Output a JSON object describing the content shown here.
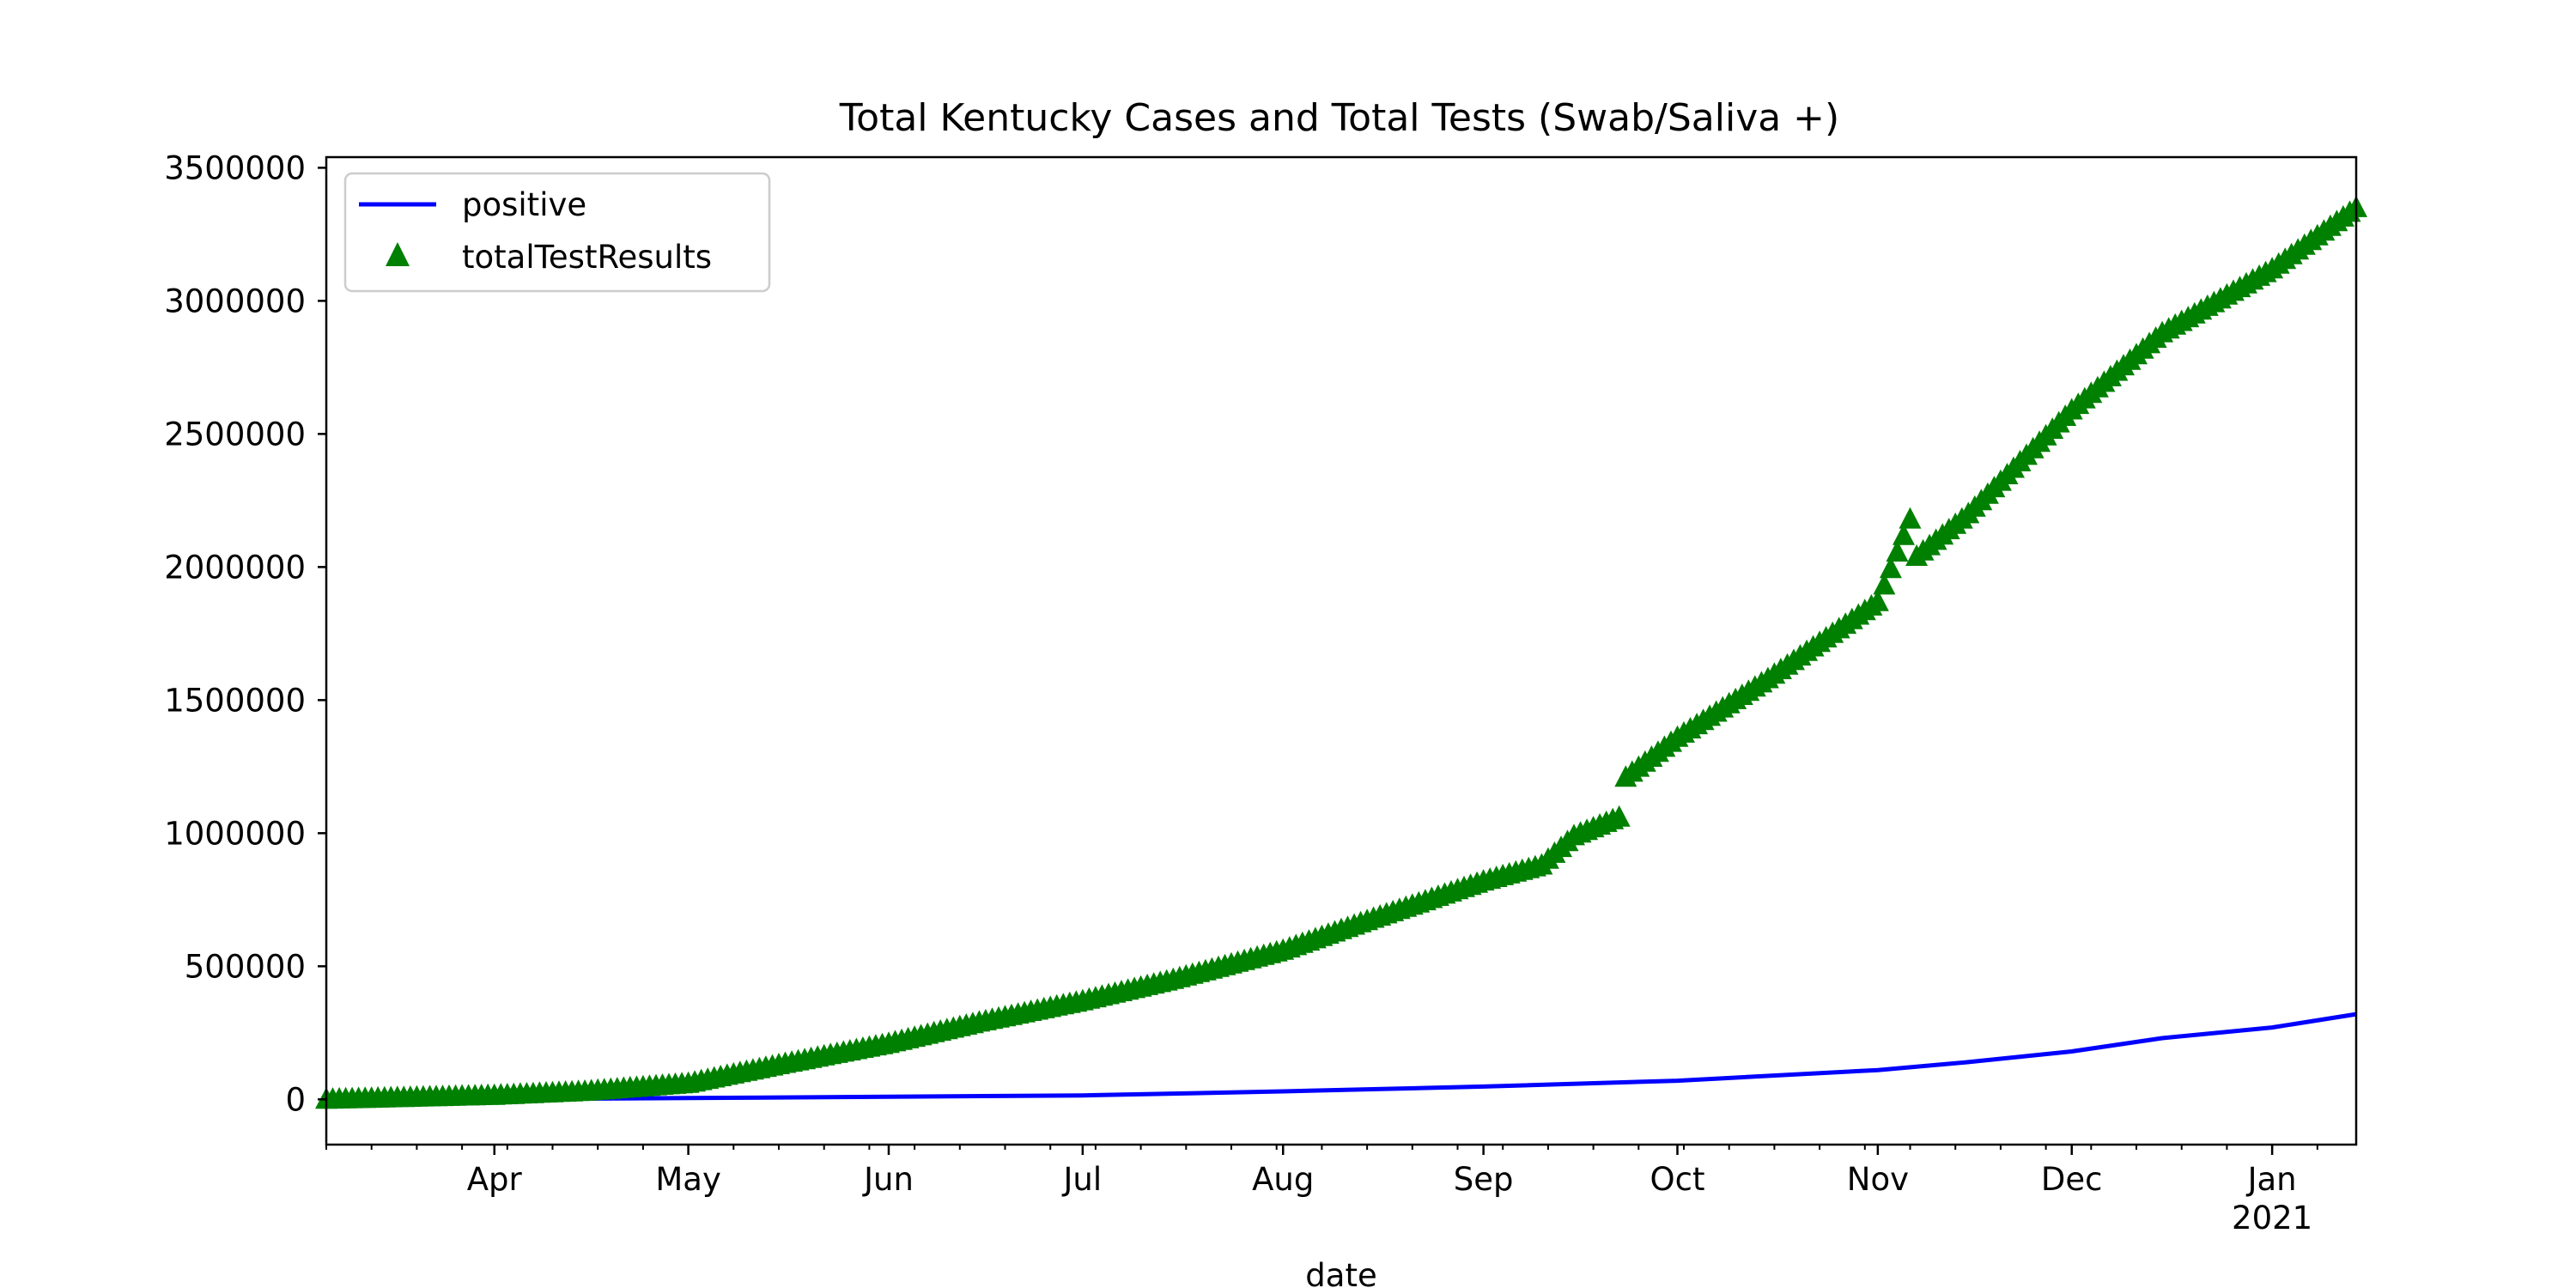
{
  "chart_data": {
    "type": "line",
    "title": "Total Kentucky Cases and Total Tests (Swab/Saliva +)",
    "xlabel": "date",
    "ylabel": "",
    "x_range": [
      "2020-03-06",
      "2021-01-14"
    ],
    "ylim": [
      -170000,
      3540000
    ],
    "grid": false,
    "legend": "top-left",
    "x_ticks": [
      {
        "date": "2020-04-01",
        "label": "Apr"
      },
      {
        "date": "2020-05-01",
        "label": "May"
      },
      {
        "date": "2020-06-01",
        "label": "Jun"
      },
      {
        "date": "2020-07-01",
        "label": "Jul"
      },
      {
        "date": "2020-08-01",
        "label": "Aug"
      },
      {
        "date": "2020-09-01",
        "label": "Sep"
      },
      {
        "date": "2020-10-01",
        "label": "Oct"
      },
      {
        "date": "2020-11-01",
        "label": "Nov"
      },
      {
        "date": "2020-12-01",
        "label": "Dec"
      },
      {
        "date": "2021-01-01",
        "label": "Jan",
        "sublabel": "2021"
      }
    ],
    "y_ticks": [
      0,
      500000,
      1000000,
      1500000,
      2000000,
      2500000,
      3000000,
      3500000
    ],
    "series": [
      {
        "name": "positive",
        "style": "line",
        "color": "#0000ff",
        "points": [
          [
            "2020-03-06",
            0
          ],
          [
            "2020-04-01",
            600
          ],
          [
            "2020-05-01",
            5000
          ],
          [
            "2020-06-01",
            10000
          ],
          [
            "2020-07-01",
            15000
          ],
          [
            "2020-08-01",
            30000
          ],
          [
            "2020-09-01",
            48000
          ],
          [
            "2020-10-01",
            70000
          ],
          [
            "2020-11-01",
            110000
          ],
          [
            "2020-11-15",
            140000
          ],
          [
            "2020-12-01",
            180000
          ],
          [
            "2020-12-15",
            230000
          ],
          [
            "2021-01-01",
            270000
          ],
          [
            "2021-01-14",
            320000
          ]
        ]
      },
      {
        "name": "totalTestResults",
        "style": "marker",
        "marker": "triangle",
        "color": "#008000",
        "points": [
          [
            "2020-03-06",
            0
          ],
          [
            "2020-04-01",
            15000
          ],
          [
            "2020-04-15",
            30000
          ],
          [
            "2020-05-01",
            60000
          ],
          [
            "2020-05-15",
            130000
          ],
          [
            "2020-06-01",
            210000
          ],
          [
            "2020-06-15",
            290000
          ],
          [
            "2020-07-01",
            370000
          ],
          [
            "2020-07-15",
            450000
          ],
          [
            "2020-08-01",
            560000
          ],
          [
            "2020-08-15",
            680000
          ],
          [
            "2020-09-01",
            820000
          ],
          [
            "2020-09-10",
            880000
          ],
          [
            "2020-09-15",
            990000
          ],
          [
            "2020-09-22",
            1060000
          ],
          [
            "2020-09-23",
            1210000
          ],
          [
            "2020-10-01",
            1360000
          ],
          [
            "2020-10-15",
            1580000
          ],
          [
            "2020-11-01",
            1870000
          ],
          [
            "2020-11-06",
            2180000
          ],
          [
            "2020-11-07",
            2040000
          ],
          [
            "2020-11-15",
            2200000
          ],
          [
            "2020-12-01",
            2590000
          ],
          [
            "2020-12-15",
            2880000
          ],
          [
            "2021-01-01",
            3120000
          ],
          [
            "2021-01-14",
            3350000
          ]
        ]
      }
    ]
  }
}
